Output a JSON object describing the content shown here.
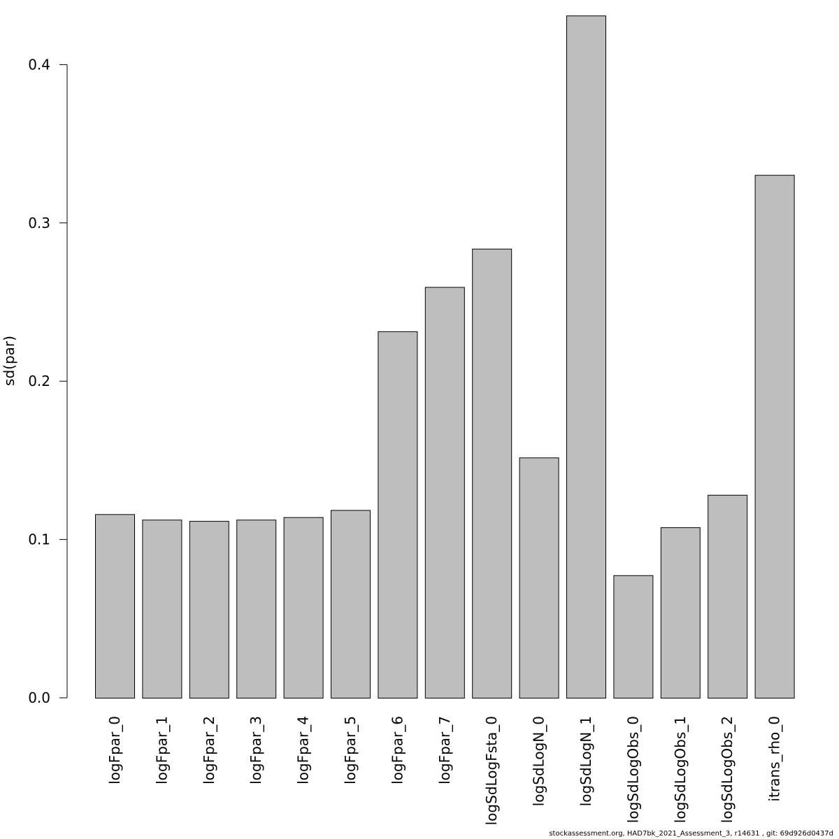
{
  "chart_data": {
    "type": "bar",
    "title": "",
    "xlabel": "",
    "ylabel": "sd(par)",
    "ylim": [
      0,
      0.43
    ],
    "yticks": [
      0.0,
      0.1,
      0.2,
      0.3,
      0.4
    ],
    "ytick_labels": [
      "0.0",
      "0.1",
      "0.2",
      "0.3",
      "0.4"
    ],
    "grid": false,
    "legend": "none",
    "categories": [
      "logFpar_0",
      "logFpar_1",
      "logFpar_2",
      "logFpar_3",
      "logFpar_4",
      "logFpar_5",
      "logFpar_6",
      "logFpar_7",
      "logSdLogFsta_0",
      "logSdLogN_0",
      "logSdLogN_1",
      "logSdLogObs_0",
      "logSdLogObs_1",
      "logSdLogObs_2",
      "itrans_rho_0"
    ],
    "values": [
      0.116,
      0.1125,
      0.1117,
      0.1125,
      0.1141,
      0.1186,
      0.2315,
      0.2595,
      0.2837,
      0.1518,
      0.431,
      0.0774,
      0.1077,
      0.1282,
      0.3303
    ],
    "bar_color": "#bebebe",
    "bar_edge_color": "#000000"
  },
  "footer": {
    "text": "stockassessment.org, HAD7bk_2021_Assessment_3, r14631 , git: 69d926d0437d"
  }
}
